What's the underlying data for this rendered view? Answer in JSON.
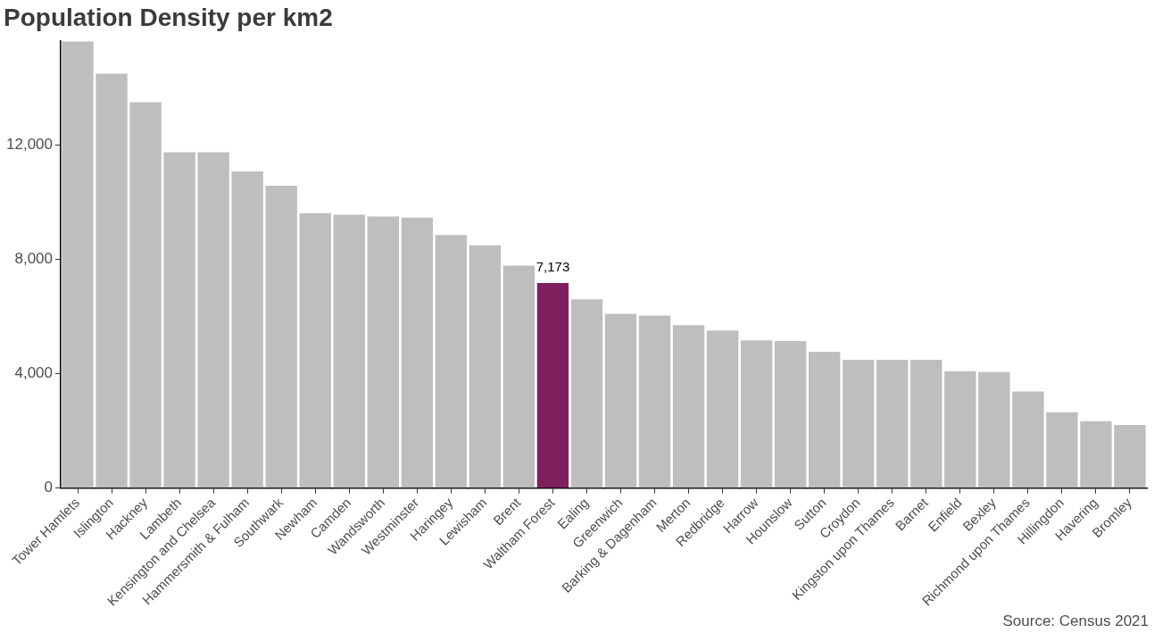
{
  "chart_data": {
    "type": "bar",
    "title": "Population Density per km2",
    "categories": [
      "Tower Hamlets",
      "Islington",
      "Hackney",
      "Lambeth",
      "Kensington and Chelsea",
      "Hammersmith & Fulham",
      "Southwark",
      "Newham",
      "Camden",
      "Wandsworth",
      "Westminster",
      "Haringey",
      "Lewisham",
      "Brent",
      "Waltham Forest",
      "Ealing",
      "Greenwich",
      "Barking & Dagenham",
      "Merton",
      "Redbridge",
      "Harrow",
      "Hounslow",
      "Sutton",
      "Croydon",
      "Kingston upon Thames",
      "Barnet",
      "Enfield",
      "Bexley",
      "Richmond upon Thames",
      "Hillingdon",
      "Havering",
      "Bromley"
    ],
    "values": [
      15620,
      14500,
      13500,
      11750,
      11750,
      11080,
      10580,
      9620,
      9560,
      9500,
      9460,
      8850,
      8490,
      7780,
      7173,
      6600,
      6100,
      6030,
      5700,
      5510,
      5170,
      5140,
      4770,
      4490,
      4490,
      4490,
      4090,
      4060,
      3380,
      2650,
      2340,
      2210
    ],
    "colors": [
      "#bebebe",
      "#bebebe",
      "#bebebe",
      "#bebebe",
      "#bebebe",
      "#bebebe",
      "#bebebe",
      "#bebebe",
      "#bebebe",
      "#bebebe",
      "#bebebe",
      "#bebebe",
      "#bebebe",
      "#bebebe",
      "#7f1f5e",
      "#bebebe",
      "#bebebe",
      "#bebebe",
      "#bebebe",
      "#bebebe",
      "#bebebe",
      "#bebebe",
      "#bebebe",
      "#bebebe",
      "#bebebe",
      "#bebebe",
      "#bebebe",
      "#bebebe",
      "#bebebe",
      "#bebebe",
      "#bebebe",
      "#bebebe"
    ],
    "value_labels": [
      null,
      null,
      null,
      null,
      null,
      null,
      null,
      null,
      null,
      null,
      null,
      null,
      null,
      null,
      "7,173",
      null,
      null,
      null,
      null,
      null,
      null,
      null,
      null,
      null,
      null,
      null,
      null,
      null,
      null,
      null,
      null,
      null
    ],
    "ylim": [
      0,
      15650
    ],
    "yticks": [
      {
        "value": 0,
        "label": "0"
      },
      {
        "value": 4000,
        "label": "4,000"
      },
      {
        "value": 8000,
        "label": "8,000"
      },
      {
        "value": 12000,
        "label": "12,000"
      }
    ],
    "grid": false,
    "legend": false,
    "annotations": [
      "Source: Census 2021"
    ]
  }
}
